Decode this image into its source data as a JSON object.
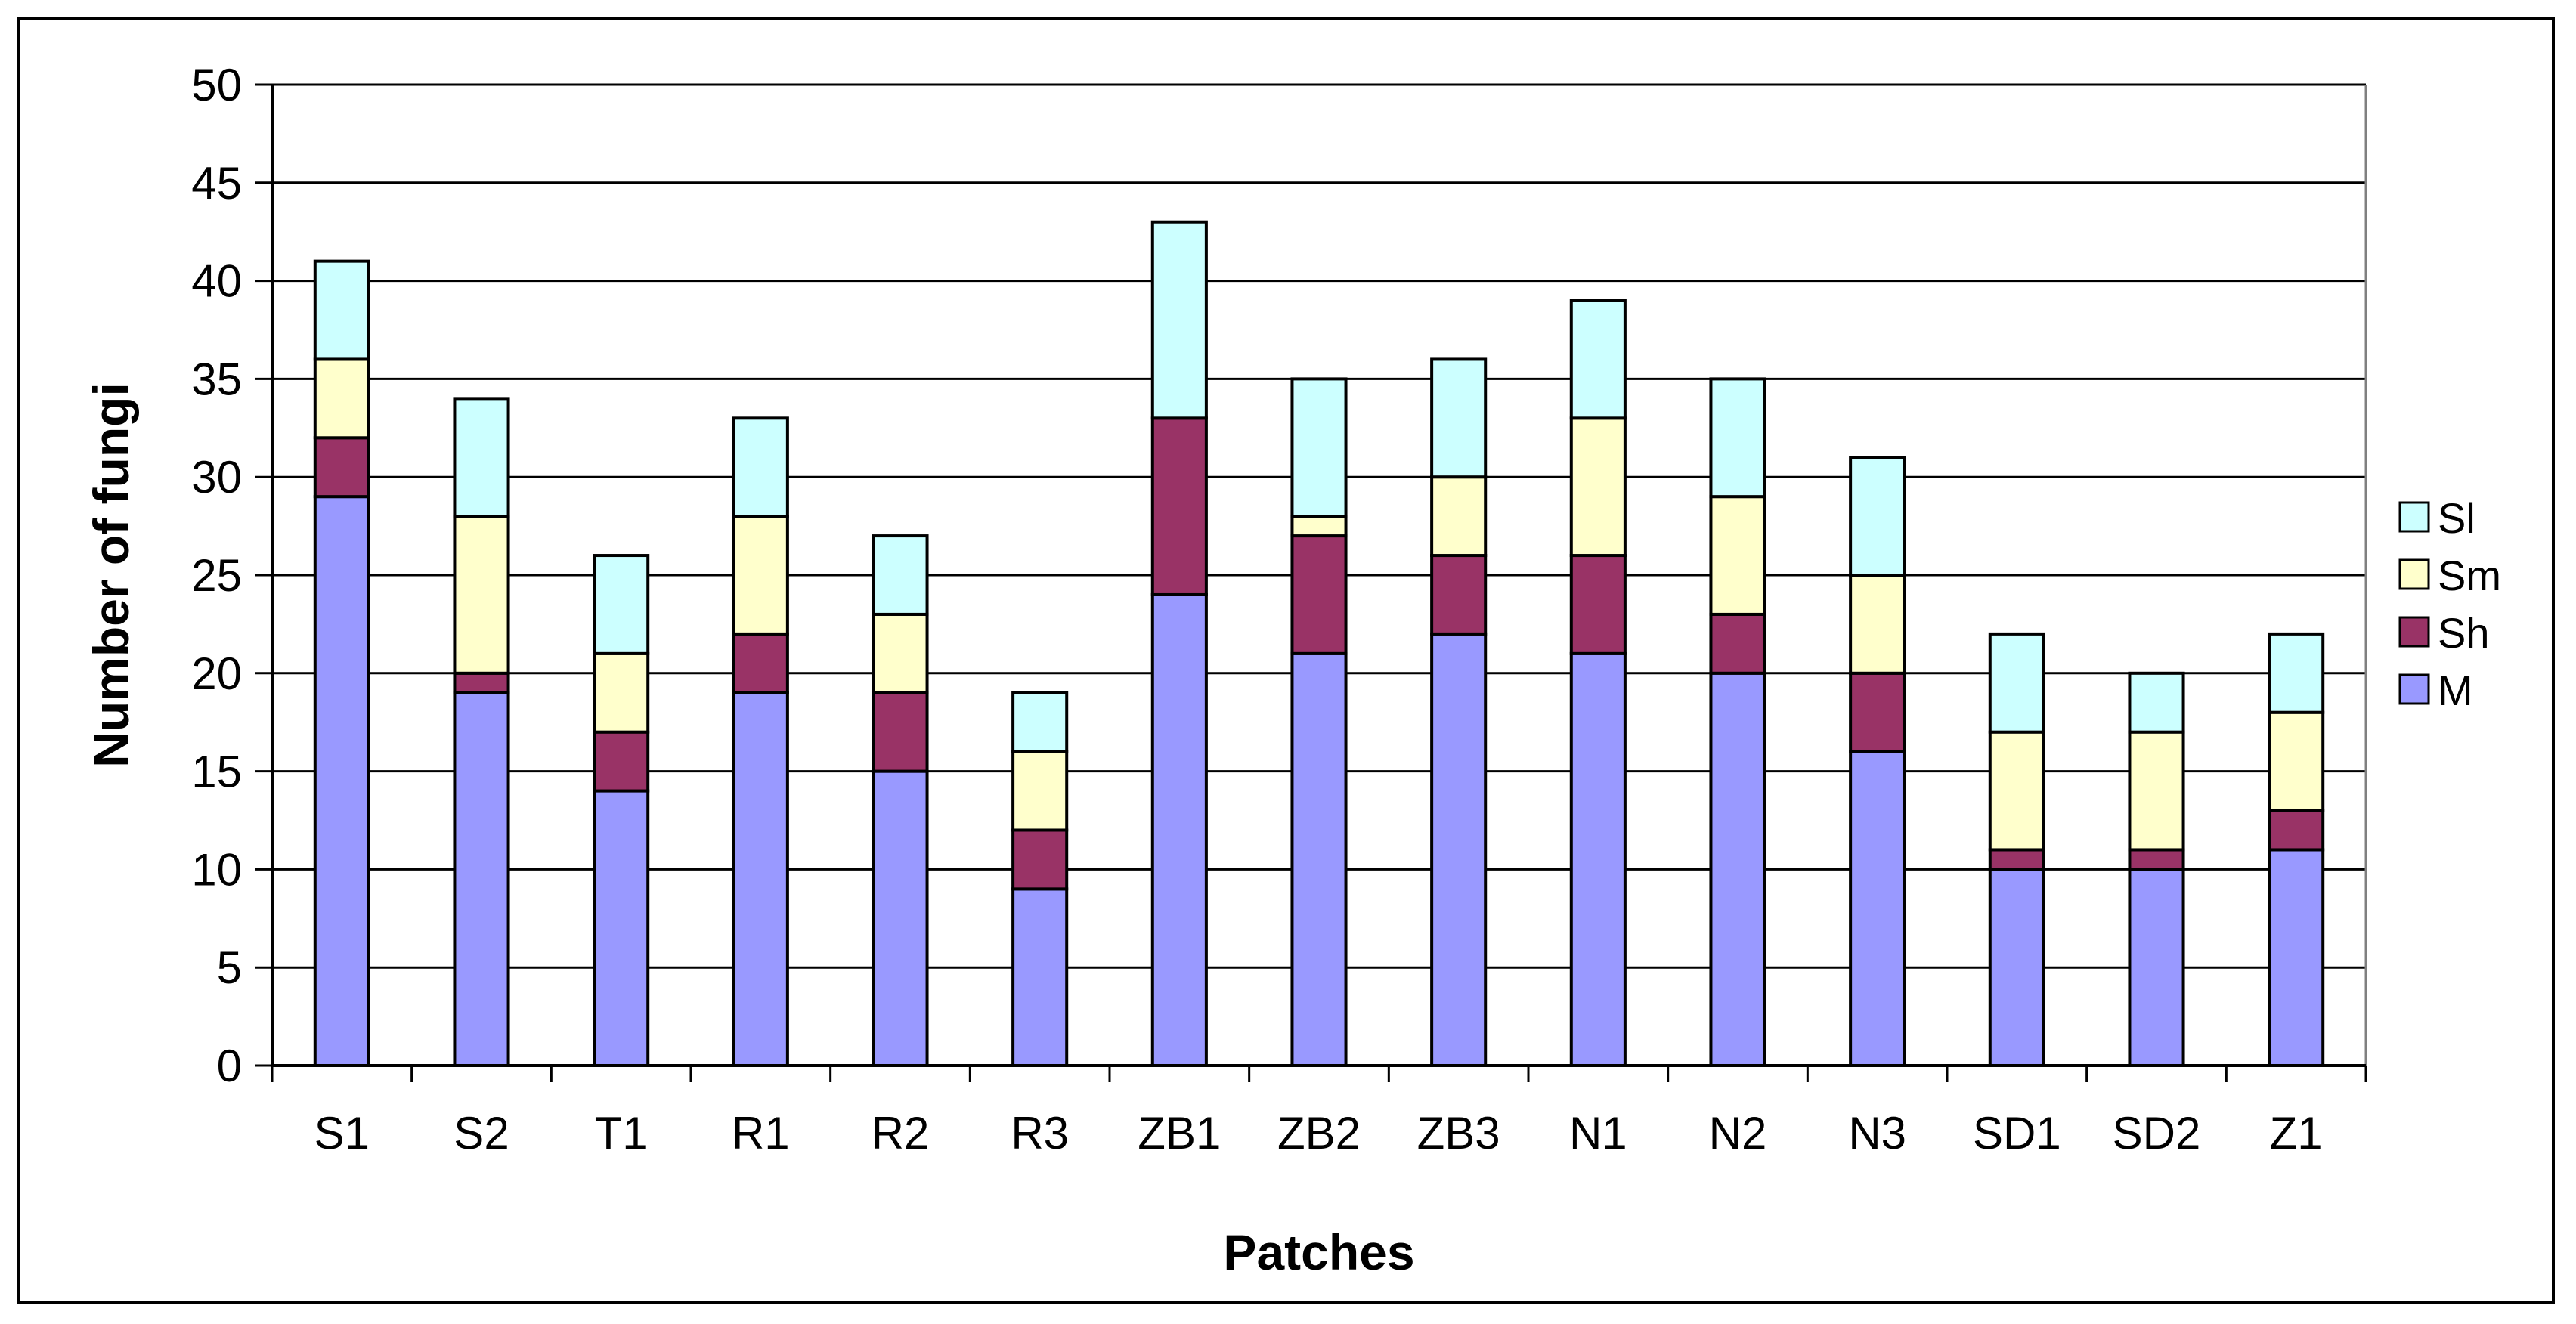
{
  "chart_data": {
    "type": "bar",
    "stacked": true,
    "title": "",
    "xlabel": "Patches",
    "ylabel": "Number of fungi",
    "ylim": [
      0,
      50
    ],
    "ytick_step": 5,
    "grid": true,
    "legend": "right",
    "categories": [
      "S1",
      "S2",
      "T1",
      "R1",
      "R2",
      "R3",
      "ZB1",
      "ZB2",
      "ZB3",
      "N1",
      "N2",
      "N3",
      "SD1",
      "SD2",
      "Z1"
    ],
    "series": [
      {
        "name": "M",
        "color": "#9999ff",
        "values": [
          29,
          19,
          14,
          19,
          15,
          9,
          24,
          21,
          22,
          21,
          20,
          16,
          10,
          10,
          11
        ]
      },
      {
        "name": "Sh",
        "color": "#993366",
        "values": [
          3,
          1,
          3,
          3,
          4,
          3,
          9,
          6,
          4,
          5,
          3,
          4,
          1,
          1,
          2
        ]
      },
      {
        "name": "Sm",
        "color": "#ffffcc",
        "values": [
          4,
          8,
          4,
          6,
          4,
          4,
          0,
          1,
          4,
          7,
          6,
          5,
          6,
          6,
          5
        ]
      },
      {
        "name": "Sl",
        "color": "#ccffff",
        "values": [
          5,
          6,
          5,
          5,
          4,
          3,
          10,
          7,
          6,
          6,
          6,
          6,
          5,
          3,
          4
        ]
      }
    ]
  }
}
